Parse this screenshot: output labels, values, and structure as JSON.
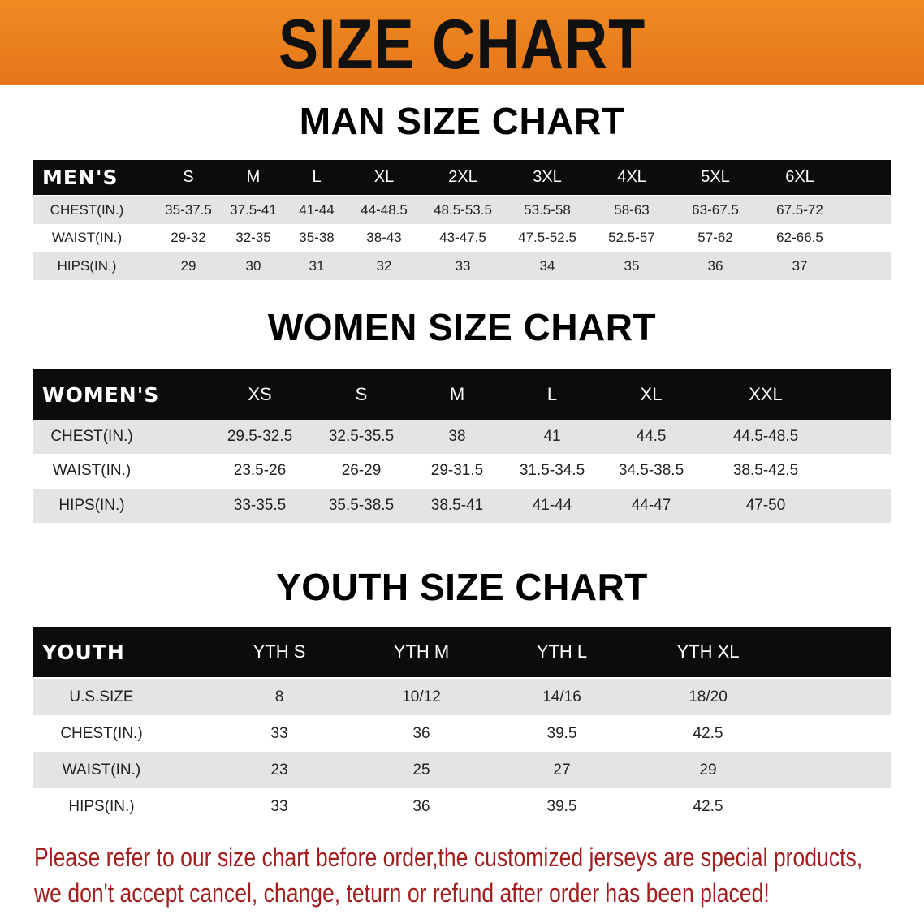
{
  "banner": {
    "title": "SIZE CHART",
    "color": "#e87a1e"
  },
  "men": {
    "title": "MAN SIZE CHART",
    "header": [
      "MEN'S",
      "S",
      "M",
      "L",
      "XL",
      "2XL",
      "3XL",
      "4XL",
      "5XL",
      "6XL"
    ],
    "rows": [
      [
        "CHEST(IN.)",
        "35-37.5",
        "37.5-41",
        "41-44",
        "44-48.5",
        "48.5-53.5",
        "53.5-58",
        "58-63",
        "63-67.5",
        "67.5-72"
      ],
      [
        "WAIST(IN.)",
        "29-32",
        "32-35",
        "35-38",
        "38-43",
        "43-47.5",
        "47.5-52.5",
        "52.5-57",
        "57-62",
        "62-66.5"
      ],
      [
        "HIPS(IN.)",
        "29",
        "30",
        "31",
        "32",
        "33",
        "34",
        "35",
        "36",
        "37"
      ]
    ]
  },
  "women": {
    "title": "WOMEN SIZE CHART",
    "header": [
      "WOMEN'S",
      "XS",
      "S",
      "M",
      "L",
      "XL",
      "XXL"
    ],
    "rows": [
      [
        "CHEST(IN.)",
        "29.5-32.5",
        "32.5-35.5",
        "38",
        "41",
        "44.5",
        "44.5-48.5"
      ],
      [
        "WAIST(IN.)",
        "23.5-26",
        "26-29",
        "29-31.5",
        "31.5-34.5",
        "34.5-38.5",
        "38.5-42.5"
      ],
      [
        "HIPS(IN.)",
        "33-35.5",
        "35.5-38.5",
        "38.5-41",
        "41-44",
        "44-47",
        "47-50"
      ]
    ]
  },
  "youth": {
    "title": "YOUTH SIZE CHART",
    "header": [
      "YOUTH",
      "YTH S",
      "YTH M",
      "YTH L",
      "YTH XL"
    ],
    "rows": [
      [
        "U.S.SIZE",
        "8",
        "10/12",
        "14/16",
        "18/20"
      ],
      [
        "CHEST(IN.)",
        "33",
        "36",
        "39.5",
        "42.5"
      ],
      [
        "WAIST(IN.)",
        "23",
        "25",
        "27",
        "29"
      ],
      [
        "HIPS(IN.)",
        "33",
        "36",
        "39.5",
        "42.5"
      ]
    ]
  },
  "note": {
    "line1": "Please refer to our size chart before order,the customized jerseys are special products,",
    "line2": "we don't accept cancel, change, teturn or refund after order has been placed!",
    "color": "#a31f1f"
  }
}
